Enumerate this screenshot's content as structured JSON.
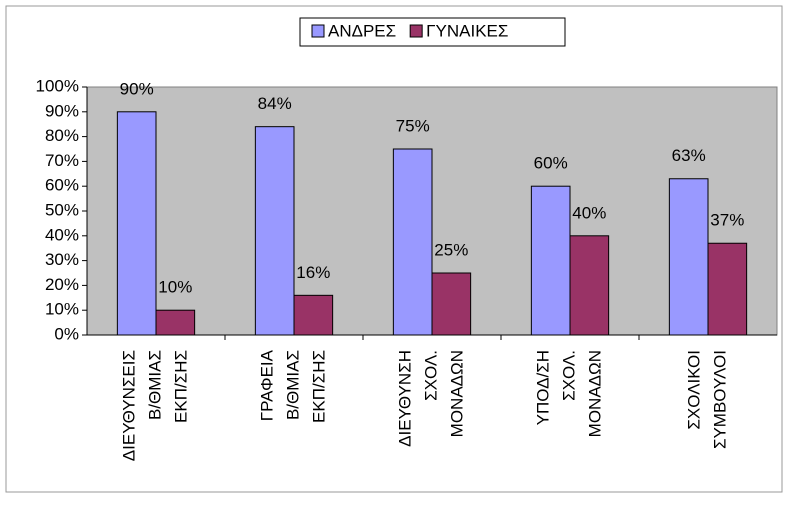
{
  "chart_data": {
    "type": "bar",
    "categories": [
      [
        "ΔΙΕΥΘΥΝΣΕΙΣ",
        "Β/ΘΜΙΑΣ",
        "ΕΚΠ/ΣΗΣ"
      ],
      [
        "ΓΡΑΦΕΙΑ",
        "Β/ΘΜΙΑΣ",
        "ΕΚΠ/ΣΗΣ"
      ],
      [
        "ΔΙΕΥΘΥΝΣΗ",
        "ΣΧΟΛ.",
        "ΜΟΝΑΔΩΝ"
      ],
      [
        "ΥΠΟΔ/ΣΗ",
        "ΣΧΟΛ.",
        "ΜΟΝΑΔΩΝ"
      ],
      [
        "ΣΧΟΛΙΚΟΙ",
        "ΣΥΜΒΟΥΛΟΙ"
      ]
    ],
    "series": [
      {
        "name": "ΑΝΔΡΕΣ",
        "color": "#9999ff",
        "values": [
          90,
          84,
          75,
          60,
          63
        ],
        "value_labels": [
          "90%",
          "84%",
          "75%",
          "60%",
          "63%"
        ]
      },
      {
        "name": "ΓΥΝΑΙΚΕΣ",
        "color": "#993366",
        "values": [
          10,
          16,
          25,
          40,
          37
        ],
        "value_labels": [
          "10%",
          "16%",
          "25%",
          "40%",
          "37%"
        ]
      }
    ],
    "ylim": [
      0,
      100
    ],
    "yticks": [
      {
        "value": 0,
        "label": "0%"
      },
      {
        "value": 10,
        "label": "10%"
      },
      {
        "value": 20,
        "label": "20%"
      },
      {
        "value": 30,
        "label": "30%"
      },
      {
        "value": 40,
        "label": "40%"
      },
      {
        "value": 50,
        "label": "50%"
      },
      {
        "value": 60,
        "label": "60%"
      },
      {
        "value": 70,
        "label": "70%"
      },
      {
        "value": 80,
        "label": "80%"
      },
      {
        "value": 90,
        "label": "90%"
      },
      {
        "value": 100,
        "label": "100%"
      }
    ],
    "grid": false,
    "legend": "top"
  }
}
